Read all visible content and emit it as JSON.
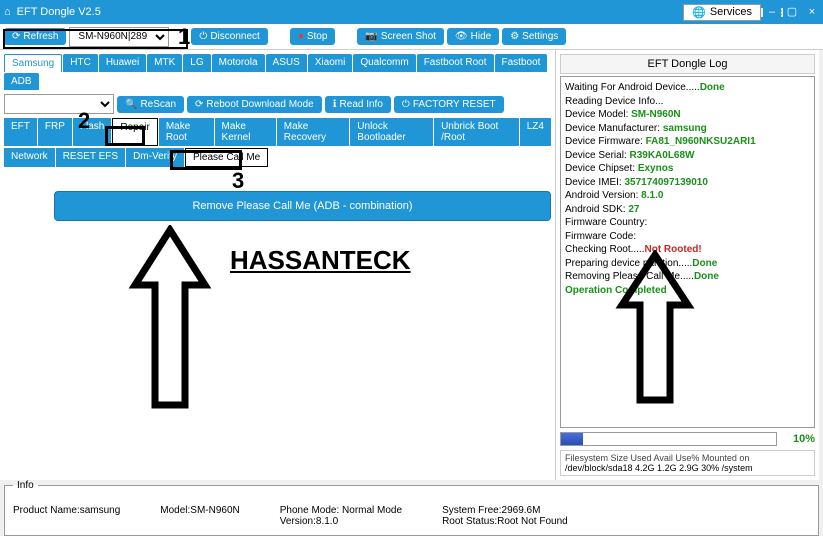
{
  "titlebar": {
    "title": "EFT Dongle V2.5"
  },
  "services_label": "Services",
  "toolbar": {
    "refresh": "Refresh",
    "device_dd": "SM-N960N|2891b",
    "disconnect": "Disconnect",
    "stop": "Stop",
    "screenshot": "Screen Shot",
    "hide": "Hide",
    "settings": "Settings"
  },
  "brand_tabs": [
    "Samsung",
    "HTC",
    "Huawei",
    "MTK",
    "LG",
    "Motorola",
    "ASUS",
    "Xiaomi",
    "Qualcomm",
    "Fastboot Root",
    "Fastboot",
    "ADB"
  ],
  "brand_active_index": 0,
  "action_buttons": {
    "rescan": "ReScan",
    "reboot": "Reboot  Download Mode",
    "readinfo": "Read Info",
    "factory": "FACTORY RESET"
  },
  "sub_tabs1": [
    "EFT",
    "FRP",
    "Flash",
    "Repair",
    "Make Root",
    "Make Kernel",
    "Make Recovery",
    "Unlock Bootloader",
    "Unbrick Boot /Root",
    "LZ4"
  ],
  "sub_tab1_active": 3,
  "sub_tabs2": [
    "Network",
    "RESET EFS",
    "Dm-Verity",
    "Please Call Me"
  ],
  "sub_tab2_active": 3,
  "big_button": "Remove Please Call Me (ADB - combination)",
  "watermark": "HASSANTECK",
  "annotations": {
    "a1": "1",
    "a2": "2",
    "a3": "3"
  },
  "log": {
    "title": "EFT Dongle Log",
    "lines": [
      {
        "t": "Waiting For Android Device.....",
        "s": "Done"
      },
      {
        "t": "Reading Device Info..."
      },
      {
        "t": "Device Model: ",
        "v": "SM-N960N"
      },
      {
        "t": "Device Manufacturer: ",
        "v": "samsung"
      },
      {
        "t": "Device Firmware: ",
        "v": "FA81_N960NKSU2ARI1"
      },
      {
        "t": "Device Serial: ",
        "v": "R39KA0L68W"
      },
      {
        "t": "Device Chipset: ",
        "v": "Exynos"
      },
      {
        "t": "Device IMEI: ",
        "v": "357174097139010"
      },
      {
        "t": "Android Version: ",
        "v": "8.1.0"
      },
      {
        "t": "Android SDK: ",
        "v": "27"
      },
      {
        "t": "Firmware Country:"
      },
      {
        "t": "Firmware Code:"
      },
      {
        "t": "Checking Root.....",
        "e": "Not Rooted!"
      },
      {
        "t": "Preparing device partition.....",
        "s": "Done"
      },
      {
        "t": "Removing Please Call Me.....",
        "s": "Done"
      },
      {
        "s": "Operation Completed"
      }
    ]
  },
  "progress": {
    "pct": "10%",
    "fill_width": "10%"
  },
  "filesystem": {
    "header": "Filesystem    Size  Used Avail Use% Mounted on",
    "row": "/dev/block/sda18  4.2G   1.2G  2.9G  30%  /system"
  },
  "info": {
    "legend": "Info",
    "product": "Product Name:samsung",
    "model": "Model:SM-N960N",
    "phonemode": "Phone Mode: Normal Mode",
    "version": "Version:8.1.0",
    "sysfree": "System Free:2969.6M",
    "rootstatus": "Root Status:Root Not Found"
  },
  "colors": {
    "primary": "#2196d6"
  }
}
